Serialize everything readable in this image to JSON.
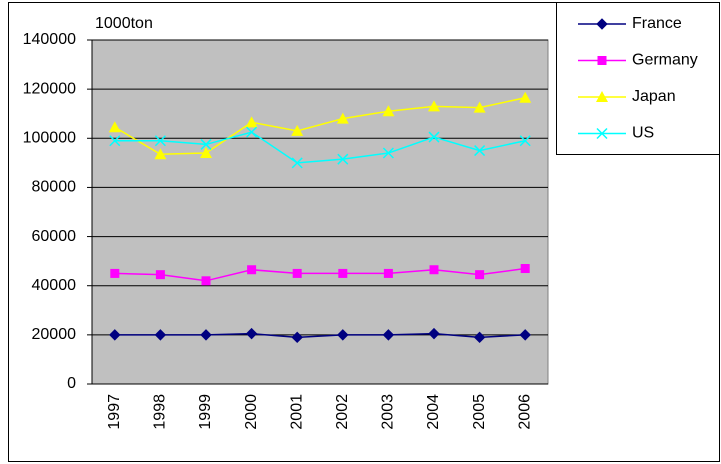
{
  "chart_data": {
    "type": "line",
    "annotation": "1000ton",
    "categories": [
      "1997",
      "1998",
      "1999",
      "2000",
      "2001",
      "2002",
      "2003",
      "2004",
      "2005",
      "2006"
    ],
    "series": [
      {
        "name": "France",
        "color": "#000080",
        "marker": "diamond",
        "values": [
          20000,
          20000,
          20000,
          20500,
          19000,
          20000,
          20000,
          20500,
          19000,
          20000
        ]
      },
      {
        "name": "Germany",
        "color": "#ff00ff",
        "marker": "square",
        "values": [
          45000,
          44500,
          42000,
          46500,
          45000,
          45000,
          45000,
          46500,
          44500,
          47000
        ]
      },
      {
        "name": "Japan",
        "color": "#ffff00",
        "marker": "triangle",
        "values": [
          104500,
          93500,
          94000,
          106500,
          103000,
          108000,
          111000,
          113000,
          112500,
          116500
        ]
      },
      {
        "name": "US",
        "color": "#00ffff",
        "marker": "x",
        "values": [
          99000,
          99000,
          97500,
          102500,
          90000,
          91500,
          94000,
          100500,
          95000,
          99000
        ]
      }
    ],
    "ylim": [
      0,
      140000
    ],
    "yticks": [
      0,
      20000,
      40000,
      60000,
      80000,
      100000,
      120000,
      140000
    ],
    "grid": true,
    "legend": "top-right"
  }
}
